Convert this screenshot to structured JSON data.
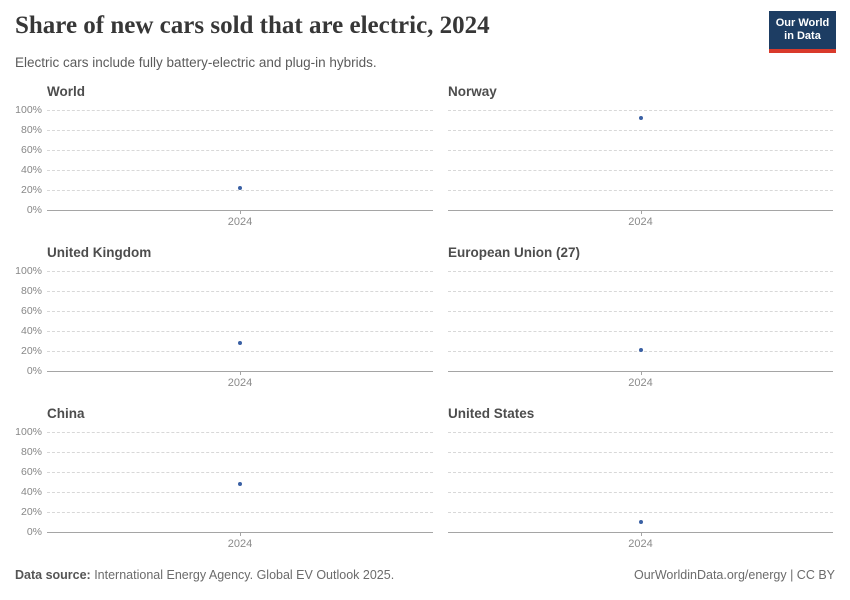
{
  "header": {
    "title": "Share of new cars sold that are electric, 2024",
    "subtitle": "Electric cars include fully battery-electric and plug-in hybrids."
  },
  "logo": {
    "line1": "Our World",
    "line2": "in Data"
  },
  "chart_data": {
    "type": "scatter",
    "x": [
      2024
    ],
    "x_tick_label": "2024",
    "ylim": [
      0,
      100
    ],
    "yticks": [
      "0%",
      "20%",
      "40%",
      "60%",
      "80%",
      "100%"
    ],
    "grid": "horizontal-dashed",
    "legend": "none",
    "point_color": "#3a60a4",
    "panels": [
      {
        "title": "World",
        "x": 2024,
        "value_percent": 22
      },
      {
        "title": "Norway",
        "x": 2024,
        "value_percent": 92
      },
      {
        "title": "United Kingdom",
        "x": 2024,
        "value_percent": 28
      },
      {
        "title": "European Union (27)",
        "x": 2024,
        "value_percent": 21
      },
      {
        "title": "China",
        "x": 2024,
        "value_percent": 48
      },
      {
        "title": "United States",
        "x": 2024,
        "value_percent": 10
      }
    ]
  },
  "footer": {
    "source_label": "Data source:",
    "source_text": " International Energy Agency. Global EV Outlook 2025.",
    "link_text": "OurWorldinData.org/energy | CC BY"
  },
  "colors": {
    "point": "#3a60a4",
    "logo_navy": "#1d3d63",
    "logo_red": "#d93a2b",
    "gridline": "#d8d8d8",
    "axis": "#a5a5a5"
  }
}
